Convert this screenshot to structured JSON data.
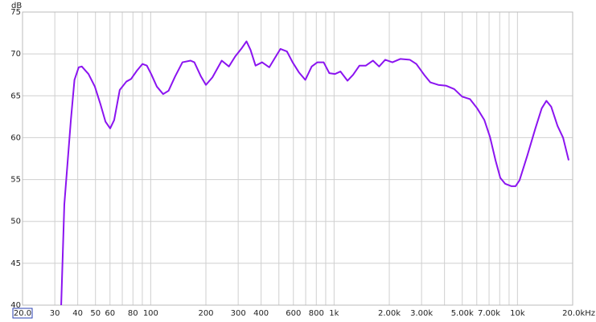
{
  "chart_data": {
    "type": "line",
    "y_label": "dB",
    "x_scale": "log",
    "color": "#8b14f0",
    "grid": true,
    "xlim": [
      20,
      20000
    ],
    "ylim": [
      40,
      75
    ],
    "yticks": [
      40,
      45,
      50,
      55,
      60,
      65,
      70,
      75
    ],
    "xticks": [
      {
        "value": 20,
        "label": "20.0"
      },
      30,
      40,
      50,
      60,
      80,
      100,
      200,
      300,
      400,
      600,
      800,
      {
        "value": 1000,
        "label": "1k"
      },
      {
        "value": 2000,
        "label": "2.00k"
      },
      {
        "value": 3000,
        "label": "3.00k"
      },
      {
        "value": 5000,
        "label": "5.00k"
      },
      {
        "value": 7000,
        "label": "7.00k"
      },
      {
        "value": 10000,
        "label": "10k"
      },
      {
        "value": 20000,
        "label": "20.0kHz"
      }
    ],
    "x_minor_grid": [
      70,
      90,
      500,
      700,
      900,
      4000,
      6000,
      8000,
      9000
    ],
    "x": [
      32.5,
      33.8,
      36.7,
      38.4,
      40.5,
      42.1,
      45.8,
      49.6,
      53.2,
      56.7,
      60.1,
      63.2,
      67.8,
      73.7,
      78.1,
      84.1,
      90.2,
      95.3,
      100.6,
      108,
      116.9,
      125.1,
      135.8,
      149,
      165,
      173,
      188,
      200,
      217,
      244,
      267,
      289,
      314,
      333,
      350,
      373,
      405,
      443,
      475,
      510,
      553,
      594,
      643,
      697,
      755,
      811,
      877,
      942,
      1010,
      1083,
      1183,
      1269,
      1375,
      1490,
      1630,
      1760,
      1900,
      2080,
      2296,
      2590,
      2810,
      3100,
      3350,
      3700,
      4090,
      4520,
      4990,
      5510,
      6030,
      6600,
      7080,
      7590,
      8060,
      8560,
      9280,
      9760,
      10260,
      11330,
      12520,
      13560,
      14380,
      15270,
      16540,
      17730,
      19020
    ],
    "values": [
      40,
      52,
      62.1,
      66.9,
      68.4,
      68.5,
      67.6,
      66.1,
      64,
      61.9,
      61.1,
      62.1,
      65.7,
      66.7,
      67,
      68,
      68.8,
      68.6,
      67.6,
      66.1,
      65.2,
      65.6,
      67.3,
      69,
      69.2,
      69,
      67.3,
      66.3,
      67.2,
      69.2,
      68.5,
      69.7,
      70.7,
      71.5,
      70.5,
      68.6,
      69,
      68.4,
      69.5,
      70.6,
      70.3,
      69,
      67.8,
      66.9,
      68.5,
      69,
      69,
      67.7,
      67.6,
      67.9,
      66.8,
      67.5,
      68.6,
      68.6,
      69.2,
      68.5,
      69.3,
      69,
      69.4,
      69.3,
      68.8,
      67.5,
      66.6,
      66.3,
      66.2,
      65.8,
      64.9,
      64.6,
      63.5,
      62.1,
      60.1,
      57.3,
      55.2,
      54.5,
      54.2,
      54.2,
      54.9,
      57.9,
      61.1,
      63.5,
      64.4,
      63.7,
      61.4,
      60,
      57.3
    ]
  }
}
